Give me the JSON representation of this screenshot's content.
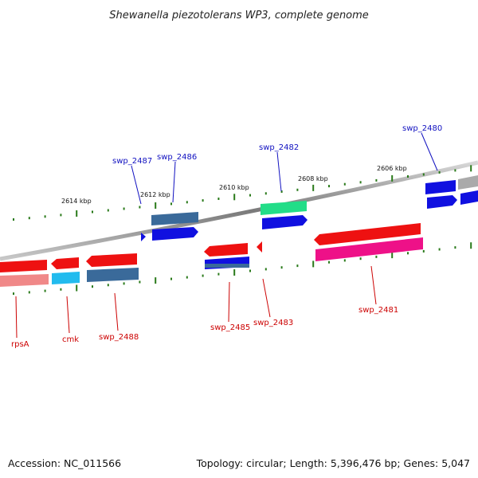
{
  "title": "Shewanella piezotolerans WP3, complete genome",
  "footer": {
    "accession": "Accession: NC_011566",
    "summary": "Topology: circular; Length: 5,396,476 bp; Genes: 5,047"
  },
  "scale_labels": [
    "2614 kbp",
    "2612 kbp",
    "2610 kbp",
    "2608 kbp",
    "2606 kbp"
  ],
  "colors": {
    "label_forward": "#1010c0",
    "label_reverse": "#cc0000",
    "tick": "#2a7a1a",
    "backbone": "#8a8a8a"
  },
  "forward_labels": [
    "swp_2487",
    "swp_2486",
    "swp_2482",
    "swp_2480"
  ],
  "reverse_labels": [
    "rpsA",
    "cmk",
    "swp_2488",
    "swp_2485",
    "swp_2483",
    "swp_2481"
  ]
}
